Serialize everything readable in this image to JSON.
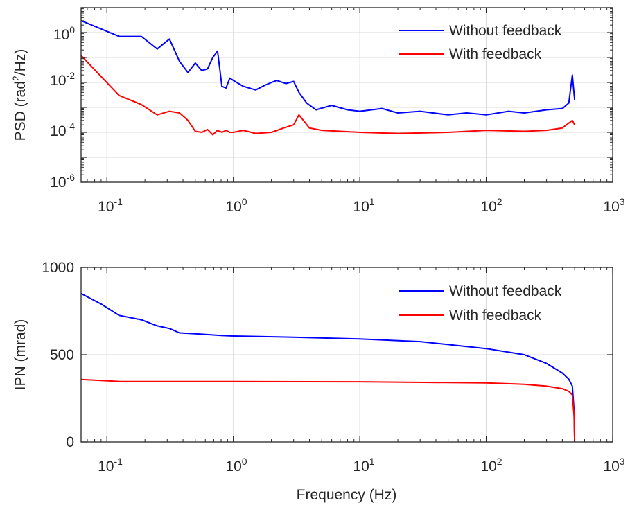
{
  "figure": {
    "xlabel": "Frequency (Hz)"
  },
  "chart_data": [
    {
      "type": "line",
      "ylabel_main": "PSD (rad",
      "ylabel_sup": "2",
      "ylabel_rest": "/Hz)",
      "xscale": "log",
      "yscale": "log",
      "xlim": [
        0.0625,
        1000
      ],
      "ylim": [
        1e-06,
        10
      ],
      "grid": true,
      "legend_position": "top-right",
      "x_ticks": [
        {
          "exp": "-1",
          "value": 0.1
        },
        {
          "exp": "0",
          "value": 1
        },
        {
          "exp": "1",
          "value": 10
        },
        {
          "exp": "2",
          "value": 100
        },
        {
          "exp": "3",
          "value": 1000
        }
      ],
      "y_ticks": [
        {
          "base": "10",
          "exp": "-6",
          "value": 1e-06
        },
        {
          "base": "10",
          "exp": "-4",
          "value": 0.0001
        },
        {
          "base": "10",
          "exp": "-2",
          "value": 0.01
        },
        {
          "base": "10",
          "exp": "0",
          "value": 1
        }
      ],
      "series": [
        {
          "name": "Without feedback",
          "color": "#0000ff",
          "x": [
            0.0625,
            0.125,
            0.1875,
            0.25,
            0.3125,
            0.375,
            0.4375,
            0.5,
            0.5625,
            0.625,
            0.6875,
            0.75,
            0.8125,
            0.875,
            0.9375,
            1.0,
            1.2,
            1.5,
            1.8,
            2.2,
            2.6,
            3.0,
            3.3,
            3.8,
            4.5,
            6,
            8,
            10,
            15,
            20,
            30,
            50,
            70,
            100,
            150,
            200,
            300,
            400,
            450,
            480,
            500
          ],
          "y": [
            3.0,
            0.7,
            0.7,
            0.22,
            0.55,
            0.07,
            0.025,
            0.06,
            0.03,
            0.035,
            0.1,
            0.18,
            0.007,
            0.006,
            0.015,
            0.012,
            0.007,
            0.005,
            0.008,
            0.012,
            0.009,
            0.011,
            0.004,
            0.0015,
            0.0008,
            0.0012,
            0.0008,
            0.0007,
            0.0009,
            0.0006,
            0.0007,
            0.0005,
            0.0006,
            0.0005,
            0.0007,
            0.0006,
            0.0008,
            0.0009,
            0.0015,
            0.02,
            0.002
          ]
        },
        {
          "name": "With feedback",
          "color": "#ff0000",
          "x": [
            0.0625,
            0.125,
            0.1875,
            0.25,
            0.3125,
            0.375,
            0.4375,
            0.5,
            0.5625,
            0.625,
            0.6875,
            0.75,
            0.8125,
            0.875,
            0.9375,
            1.0,
            1.2,
            1.5,
            2.0,
            2.5,
            3.0,
            3.3,
            4.0,
            5,
            7,
            10,
            20,
            50,
            100,
            200,
            300,
            400,
            480,
            500
          ],
          "y": [
            0.12,
            0.003,
            0.0013,
            0.0005,
            0.0007,
            0.0006,
            0.0003,
            0.00011,
            0.0001,
            0.00013,
            8e-05,
            0.00012,
            0.0001,
            0.00012,
            0.0001,
            0.0001,
            0.00012,
            9e-05,
            0.0001,
            0.00015,
            0.0002,
            0.0005,
            0.00015,
            0.00012,
            0.00011,
            0.0001,
            9e-05,
            0.0001,
            0.00012,
            0.00011,
            0.00012,
            0.00015,
            0.0003,
            0.0002
          ]
        }
      ]
    },
    {
      "type": "line",
      "ylabel": "IPN (mrad)",
      "xscale": "log",
      "yscale": "linear",
      "xlim": [
        0.0625,
        1000
      ],
      "ylim": [
        0,
        1000
      ],
      "grid": true,
      "legend_position": "top-right",
      "x_ticks": [
        {
          "exp": "-1",
          "value": 0.1
        },
        {
          "exp": "0",
          "value": 1
        },
        {
          "exp": "1",
          "value": 10
        },
        {
          "exp": "2",
          "value": 100
        },
        {
          "exp": "3",
          "value": 1000
        }
      ],
      "y_ticks": [
        {
          "label": "0",
          "value": 0
        },
        {
          "label": "500",
          "value": 500
        },
        {
          "label": "1000",
          "value": 1000
        }
      ],
      "series": [
        {
          "name": "Without feedback",
          "color": "#0000ff",
          "x": [
            0.0625,
            0.09,
            0.125,
            0.1875,
            0.25,
            0.3125,
            0.375,
            0.5,
            0.8,
            1,
            3,
            10,
            30,
            100,
            200,
            300,
            400,
            450,
            480,
            495,
            500
          ],
          "y": [
            850,
            790,
            725,
            700,
            665,
            650,
            625,
            620,
            610,
            607,
            600,
            590,
            575,
            535,
            500,
            450,
            395,
            360,
            320,
            180,
            0
          ]
        },
        {
          "name": "With feedback",
          "color": "#ff0000",
          "x": [
            0.0625,
            0.125,
            0.3,
            1,
            10,
            100,
            200,
            300,
            400,
            450,
            480,
            495,
            500
          ],
          "y": [
            358,
            347,
            346,
            346,
            345,
            338,
            330,
            320,
            305,
            290,
            270,
            150,
            0
          ]
        }
      ]
    }
  ]
}
